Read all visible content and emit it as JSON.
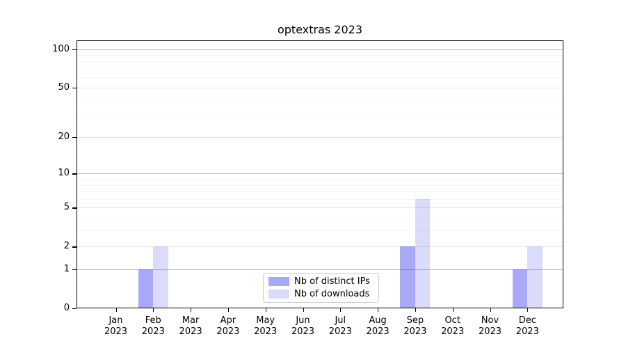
{
  "chart_data": {
    "type": "bar",
    "title": "optextras 2023",
    "categories": [
      {
        "month": "Jan",
        "year": "2023"
      },
      {
        "month": "Feb",
        "year": "2023"
      },
      {
        "month": "Mar",
        "year": "2023"
      },
      {
        "month": "Apr",
        "year": "2023"
      },
      {
        "month": "May",
        "year": "2023"
      },
      {
        "month": "Jun",
        "year": "2023"
      },
      {
        "month": "Jul",
        "year": "2023"
      },
      {
        "month": "Aug",
        "year": "2023"
      },
      {
        "month": "Sep",
        "year": "2023"
      },
      {
        "month": "Oct",
        "year": "2023"
      },
      {
        "month": "Nov",
        "year": "2023"
      },
      {
        "month": "Dec",
        "year": "2023"
      }
    ],
    "series": [
      {
        "name": "Nb of distinct IPs",
        "color": "#a9a9f8",
        "values": [
          0,
          1,
          0,
          0,
          0,
          0,
          0,
          0,
          2,
          0,
          0,
          1
        ]
      },
      {
        "name": "Nb of downloads",
        "color": "#dbdcf9",
        "values": [
          0,
          2,
          0,
          0,
          0,
          0,
          0,
          0,
          6,
          0,
          0,
          2
        ]
      }
    ],
    "xlabel": "",
    "ylabel": "",
    "yscale": "log1p",
    "ylim": [
      0,
      117
    ],
    "yticks": [
      0,
      1,
      2,
      5,
      10,
      20,
      50,
      100
    ],
    "yticks_decade": [
      1,
      10,
      100
    ],
    "yticks_minor": [
      3,
      4,
      6,
      7,
      8,
      9,
      30,
      40,
      60,
      70,
      80,
      90
    ],
    "grid": "both",
    "grid_above_bars": true,
    "legend_position": "lower center"
  }
}
